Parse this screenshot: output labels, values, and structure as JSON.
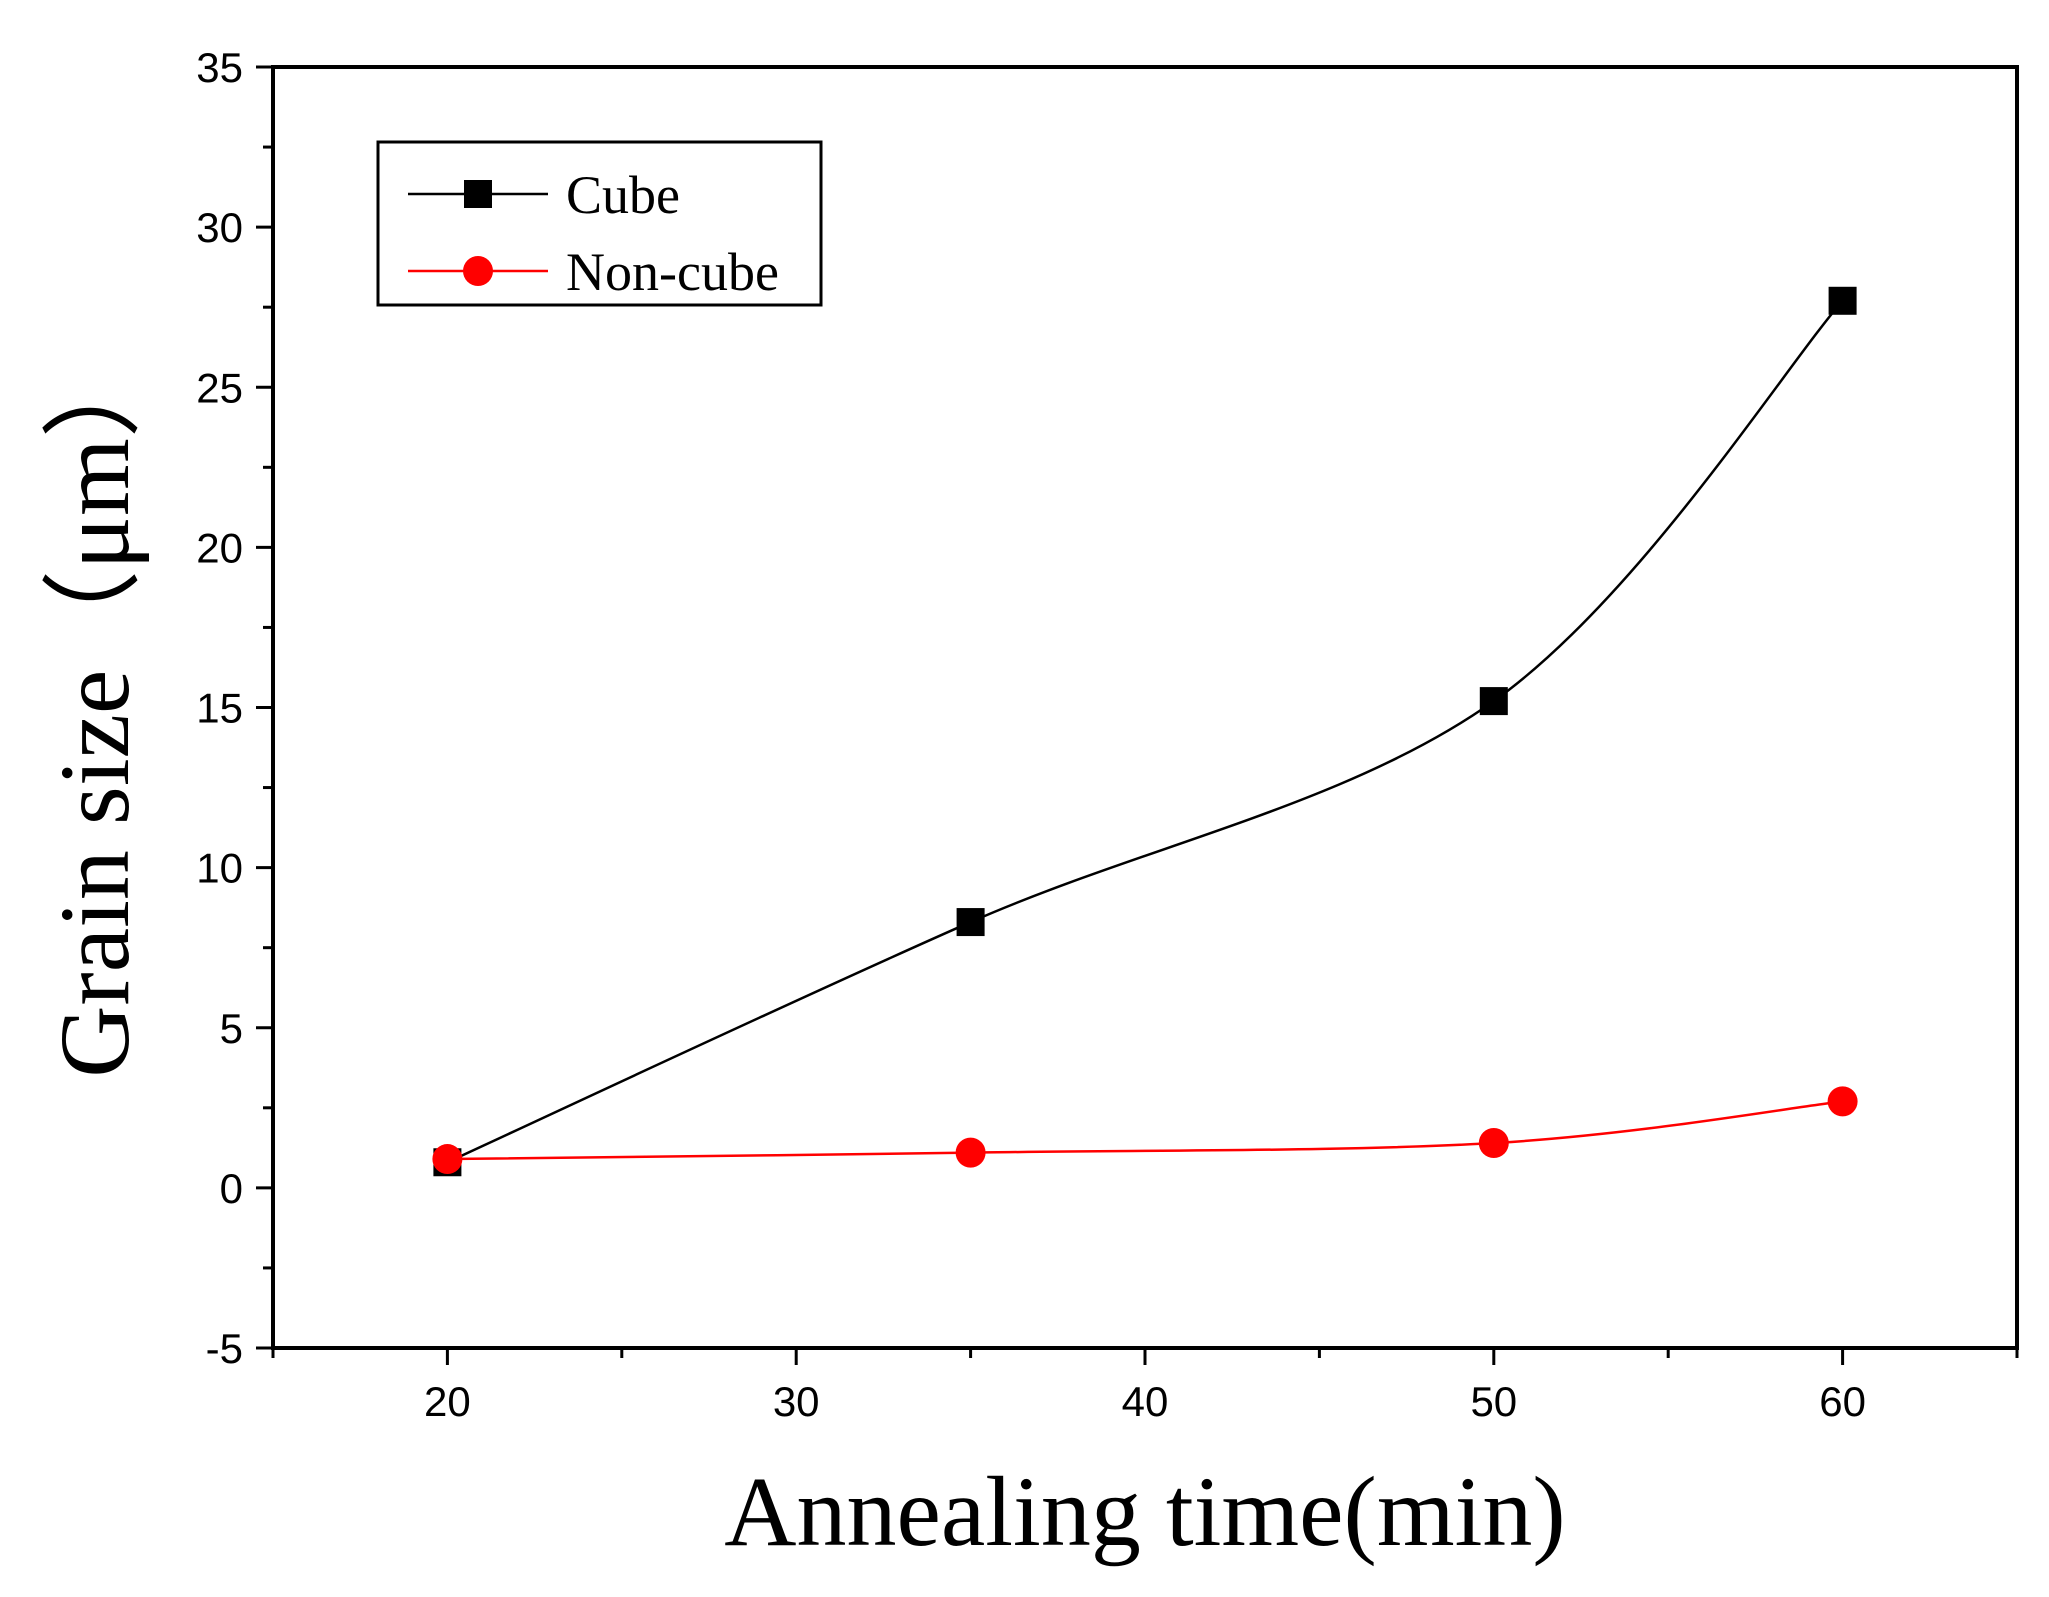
{
  "chart_data": {
    "type": "line",
    "xlabel": "Annealing time(min)",
    "ylabel": "Grain size（μm）",
    "xlim": [
      15,
      65
    ],
    "ylim": [
      -5,
      35
    ],
    "x_ticks": [
      20,
      30,
      40,
      50,
      60
    ],
    "y_ticks": [
      -5,
      0,
      5,
      10,
      15,
      20,
      25,
      30,
      35
    ],
    "grid": false,
    "legend_position": "top-left",
    "series": [
      {
        "name": "Cube",
        "color": "#000000",
        "marker": "square",
        "x": [
          20,
          35,
          50,
          60
        ],
        "y": [
          0.8,
          8.3,
          15.2,
          27.7
        ]
      },
      {
        "name": "Non-cube",
        "color": "#ff0000",
        "marker": "circle",
        "x": [
          20,
          35,
          50,
          60
        ],
        "y": [
          0.9,
          1.1,
          1.4,
          2.7
        ]
      }
    ]
  }
}
